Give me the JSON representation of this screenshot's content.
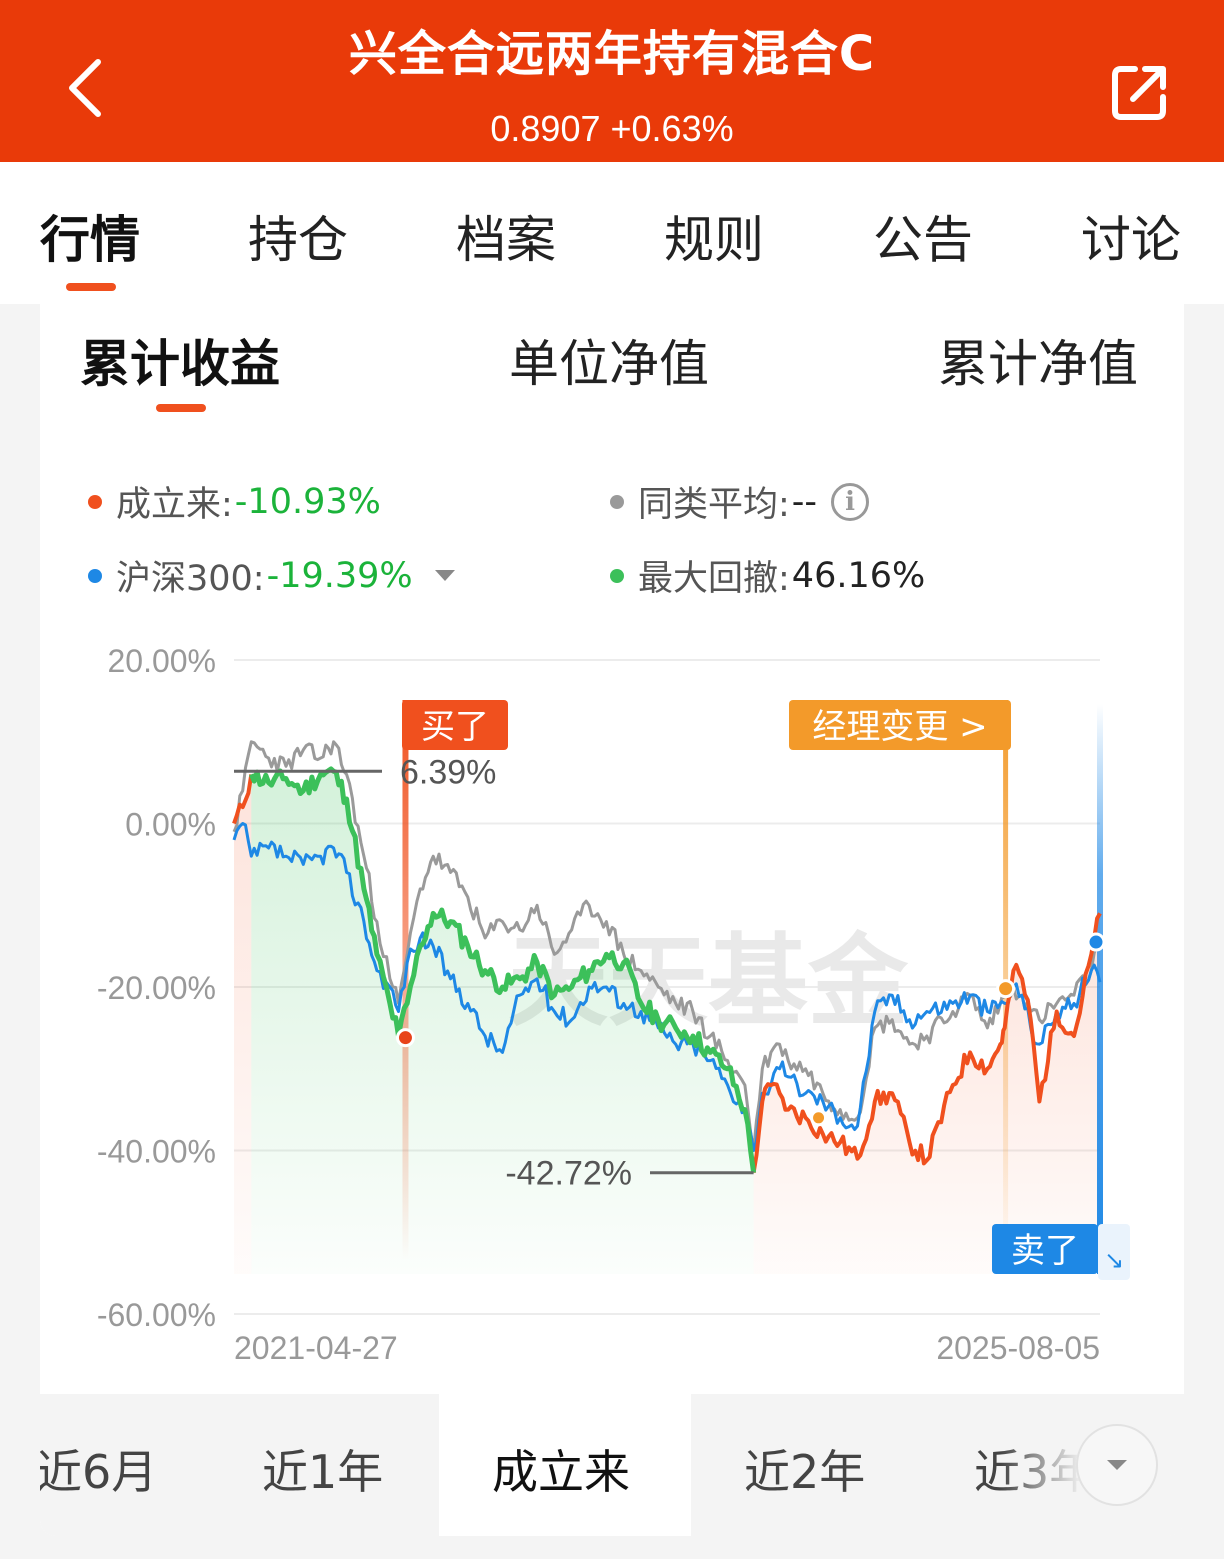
{
  "header": {
    "title": "兴全合远两年持有混合C",
    "subtitle": "0.8907 +0.63%",
    "back_icon": "chevron-left-icon",
    "share_icon": "share-external-icon"
  },
  "main_tabs": [
    {
      "label": "行情",
      "active": true
    },
    {
      "label": "持仓"
    },
    {
      "label": "档案"
    },
    {
      "label": "规则"
    },
    {
      "label": "公告"
    },
    {
      "label": "讨论"
    }
  ],
  "sub_tabs": [
    {
      "label": "累计收益",
      "active": true
    },
    {
      "label": "单位净值"
    },
    {
      "label": "累计净值"
    }
  ],
  "legend": {
    "fund": {
      "label": "成立来:",
      "value": "-10.93%",
      "color": "#f0501e"
    },
    "peer": {
      "label": "同类平均:",
      "value": "--",
      "color": "#9a9a9a"
    },
    "index": {
      "label": "沪深300:",
      "value": "-19.39%",
      "color": "#1e88e5"
    },
    "drawdown": {
      "label": "最大回撤:",
      "value": "46.16%",
      "color": "#3cc05a"
    }
  },
  "chart_data": {
    "type": "line",
    "y_ticks": [
      "20.00%",
      "0.00%",
      "-20.00%",
      "-40.00%",
      "-60.00%"
    ],
    "ylim": [
      -60,
      20
    ],
    "x_labels": [
      "2021-04-27",
      "2025-08-05"
    ],
    "grid": true,
    "watermark": "天天基金",
    "annotations": {
      "buy": "买了",
      "sell": "卖了",
      "manager_change": "经理变更 >",
      "peak_label": "6.39%",
      "trough_label": "-42.72%"
    },
    "series": [
      {
        "name": "成立来",
        "color": "#f0501e",
        "t": [
          0,
          0.01,
          0.02,
          0.04,
          0.06,
          0.08,
          0.1,
          0.115,
          0.13,
          0.15,
          0.165,
          0.18,
          0.19,
          0.2,
          0.215,
          0.23,
          0.25,
          0.27,
          0.29,
          0.31,
          0.33,
          0.35,
          0.37,
          0.39,
          0.41,
          0.43,
          0.45,
          0.47,
          0.49,
          0.51,
          0.53,
          0.55,
          0.57,
          0.59,
          0.6,
          0.61,
          0.62,
          0.63,
          0.64,
          0.66,
          0.68,
          0.7,
          0.72,
          0.74,
          0.76,
          0.78,
          0.8,
          0.83,
          0.85,
          0.87,
          0.885,
          0.89,
          0.9,
          0.91,
          0.92,
          0.93,
          0.95,
          0.97,
          0.99,
          1.0
        ],
        "values": [
          0,
          2,
          6,
          5,
          5.5,
          4,
          6,
          6.39,
          3,
          -8,
          -16,
          -22,
          -26,
          -22,
          -15,
          -11,
          -12,
          -15,
          -18,
          -20,
          -19,
          -17,
          -21,
          -20,
          -18,
          -16,
          -17,
          -22,
          -24,
          -25,
          -26,
          -28,
          -30,
          -35,
          -42.72,
          -34,
          -32,
          -33,
          -35,
          -36,
          -38,
          -39,
          -41,
          -34,
          -33,
          -39,
          -41.2,
          -32,
          -28,
          -30,
          -27,
          -25,
          -18,
          -19,
          -24,
          -34,
          -23,
          -26,
          -16,
          -11
        ]
      },
      {
        "name": "同类平均",
        "color": "#9a9a9a",
        "t": [
          0,
          0.01,
          0.02,
          0.04,
          0.06,
          0.08,
          0.1,
          0.115,
          0.13,
          0.15,
          0.165,
          0.18,
          0.19,
          0.2,
          0.215,
          0.23,
          0.25,
          0.27,
          0.29,
          0.31,
          0.33,
          0.35,
          0.37,
          0.39,
          0.41,
          0.43,
          0.45,
          0.47,
          0.49,
          0.51,
          0.53,
          0.55,
          0.57,
          0.59,
          0.6,
          0.61,
          0.62,
          0.63,
          0.64,
          0.66,
          0.68,
          0.7,
          0.72,
          0.74,
          0.76,
          0.78,
          0.8,
          0.83,
          0.85,
          0.87,
          0.885,
          0.89,
          0.9,
          0.91,
          0.92,
          0.93,
          0.95,
          0.97,
          0.99,
          1.0
        ],
        "values": [
          -1,
          4,
          10,
          8,
          7,
          9,
          8,
          10,
          6,
          -4,
          -12,
          -19,
          -22,
          -16,
          -8,
          -4,
          -6,
          -9,
          -14,
          -12,
          -13,
          -10,
          -16,
          -13,
          -10,
          -12,
          -16,
          -18,
          -20,
          -22,
          -23,
          -26,
          -29,
          -32,
          -40,
          -30,
          -28,
          -27,
          -29,
          -30,
          -33,
          -35,
          -36,
          -25,
          -24,
          -27,
          -26,
          -23,
          -21,
          -25,
          -22,
          -21,
          -20,
          -21,
          -23,
          -24,
          -22,
          -21,
          -18,
          -14
        ]
      },
      {
        "name": "沪深300",
        "color": "#1e88e5",
        "t": [
          0,
          0.01,
          0.02,
          0.04,
          0.06,
          0.08,
          0.1,
          0.115,
          0.13,
          0.15,
          0.165,
          0.18,
          0.19,
          0.2,
          0.215,
          0.23,
          0.25,
          0.27,
          0.29,
          0.31,
          0.33,
          0.35,
          0.37,
          0.39,
          0.41,
          0.43,
          0.45,
          0.47,
          0.49,
          0.51,
          0.53,
          0.55,
          0.57,
          0.59,
          0.6,
          0.61,
          0.62,
          0.63,
          0.64,
          0.66,
          0.68,
          0.7,
          0.72,
          0.74,
          0.76,
          0.78,
          0.8,
          0.83,
          0.85,
          0.87,
          0.885,
          0.89,
          0.9,
          0.91,
          0.92,
          0.93,
          0.95,
          0.97,
          0.99,
          1.0
        ],
        "values": [
          -2,
          0,
          -4,
          -3,
          -4,
          -5,
          -4,
          -3,
          -6,
          -12,
          -18,
          -20,
          -23,
          -17,
          -14,
          -15,
          -19,
          -22,
          -26,
          -28,
          -21,
          -19,
          -23,
          -24,
          -20,
          -20,
          -22,
          -23,
          -25,
          -27,
          -27,
          -29,
          -32,
          -35,
          -40,
          -33,
          -32,
          -30,
          -31,
          -33,
          -34,
          -36,
          -37,
          -23,
          -21,
          -24,
          -23,
          -22,
          -21,
          -23,
          -22,
          -22,
          -20,
          -21,
          -25,
          -27,
          -23,
          -22,
          -18,
          -19.4
        ]
      }
    ]
  }
}
